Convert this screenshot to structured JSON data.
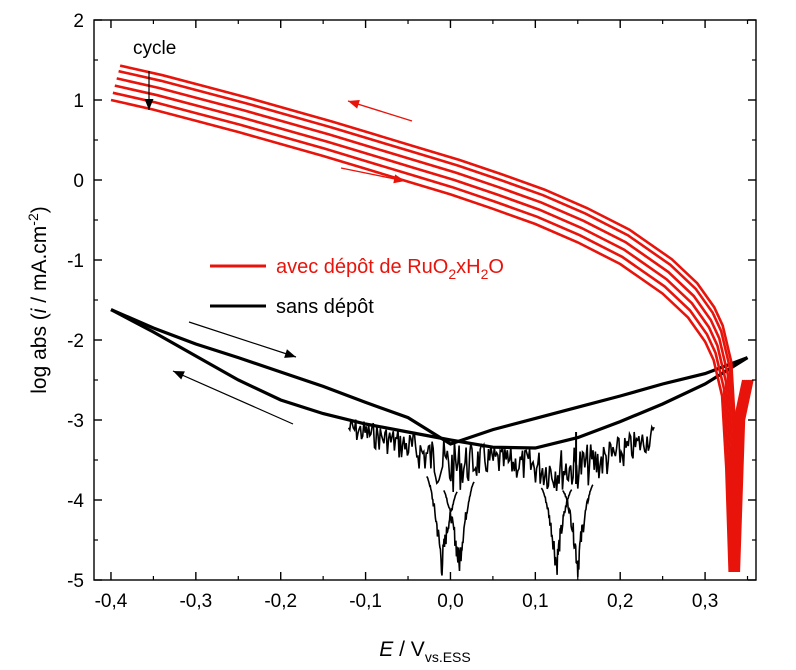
{
  "chart_data": {
    "type": "line",
    "xlabel": {
      "italic": "E",
      "main": " / V",
      "sub": "vs.ESS"
    },
    "ylabel": {
      "prefix": "log abs (",
      "italic": "i",
      "middle": " / mA.cm",
      "sup": "-2",
      "suffix": ")"
    },
    "xlim": [
      -0.42,
      0.36
    ],
    "ylim": [
      -5,
      2
    ],
    "xticks": [
      -0.4,
      -0.3,
      -0.2,
      -0.1,
      0.0,
      0.1,
      0.2,
      0.3
    ],
    "xtick_labels": [
      "-0,4",
      "-0,3",
      "-0,2",
      "-0,1",
      "0,0",
      "0,1",
      "0,2",
      "0,3"
    ],
    "yticks": [
      -5,
      -4,
      -3,
      -2,
      -1,
      0,
      1,
      2
    ],
    "ytick_labels": [
      "-5",
      "-4",
      "-3",
      "-2",
      "-1",
      "0",
      "1",
      "2"
    ],
    "legend": {
      "placement": "center-left",
      "entries": [
        {
          "text_main": "avec dépôt de RuO",
          "sub1": "2",
          "text_mid": "xH",
          "sub2": "2",
          "text_end": "O",
          "color": "#e8140c"
        },
        {
          "text": "sans dépôt",
          "color": "#000000"
        }
      ]
    },
    "annotation": {
      "text": "cycle"
    },
    "colors": {
      "red": "#e8140c",
      "black": "#000000"
    },
    "series": [
      {
        "color": "#e8140c",
        "cycle_offsets": [
          0,
          0.09,
          0.18,
          0.27,
          0.36,
          0.43
        ],
        "x": [
          -0.4,
          -0.35,
          -0.3,
          -0.25,
          -0.2,
          -0.15,
          -0.1,
          -0.05,
          0.0,
          0.05,
          0.1,
          0.15,
          0.2,
          0.25,
          0.28,
          0.3,
          0.31,
          0.32,
          0.325
        ],
        "y": [
          1.0,
          0.88,
          0.74,
          0.6,
          0.45,
          0.3,
          0.14,
          -0.02,
          -0.18,
          -0.36,
          -0.55,
          -0.78,
          -1.05,
          -1.42,
          -1.72,
          -2.02,
          -2.25,
          -2.7,
          -3.6
        ]
      },
      {
        "color": "#000000",
        "branch_a": {
          "x": [
            -0.4,
            -0.35,
            -0.3,
            -0.25,
            -0.2,
            -0.15,
            -0.1,
            -0.05,
            0.0,
            0.05,
            0.1,
            0.15,
            0.2,
            0.25,
            0.3,
            0.35
          ],
          "y": [
            -1.62,
            -1.85,
            -2.05,
            -2.22,
            -2.4,
            -2.58,
            -2.78,
            -2.97,
            -3.3,
            -3.12,
            -2.98,
            -2.84,
            -2.7,
            -2.55,
            -2.42,
            -2.22
          ]
        },
        "branch_b": {
          "x": [
            -0.4,
            -0.35,
            -0.3,
            -0.25,
            -0.2,
            -0.15,
            -0.1,
            -0.05,
            0.0,
            0.05,
            0.1,
            0.15,
            0.2,
            0.25,
            0.3,
            0.35
          ],
          "y": [
            -1.62,
            -1.9,
            -2.2,
            -2.5,
            -2.75,
            -2.92,
            -3.05,
            -3.15,
            -3.25,
            -3.34,
            -3.35,
            -3.22,
            -3.02,
            -2.8,
            -2.55,
            -2.22
          ]
        },
        "noise_band": {
          "x": [
            -0.12,
            -0.08,
            -0.04,
            0.0,
            0.04,
            0.08,
            0.12,
            0.16,
            0.2,
            0.24
          ],
          "y_top": [
            -2.95,
            -3.05,
            -3.15,
            -3.25,
            -3.3,
            -3.35,
            -3.35,
            -3.3,
            -3.2,
            -3.05
          ],
          "y_bottom": [
            -3.25,
            -3.4,
            -3.6,
            -3.95,
            -3.7,
            -3.75,
            -3.9,
            -3.85,
            -3.65,
            -3.35
          ]
        },
        "dips": [
          {
            "x": -0.01,
            "min": -5.0
          },
          {
            "x": 0.01,
            "min": -5.0
          },
          {
            "x": 0.125,
            "min": -5.0
          },
          {
            "x": 0.15,
            "min": -5.0
          }
        ]
      }
    ]
  }
}
